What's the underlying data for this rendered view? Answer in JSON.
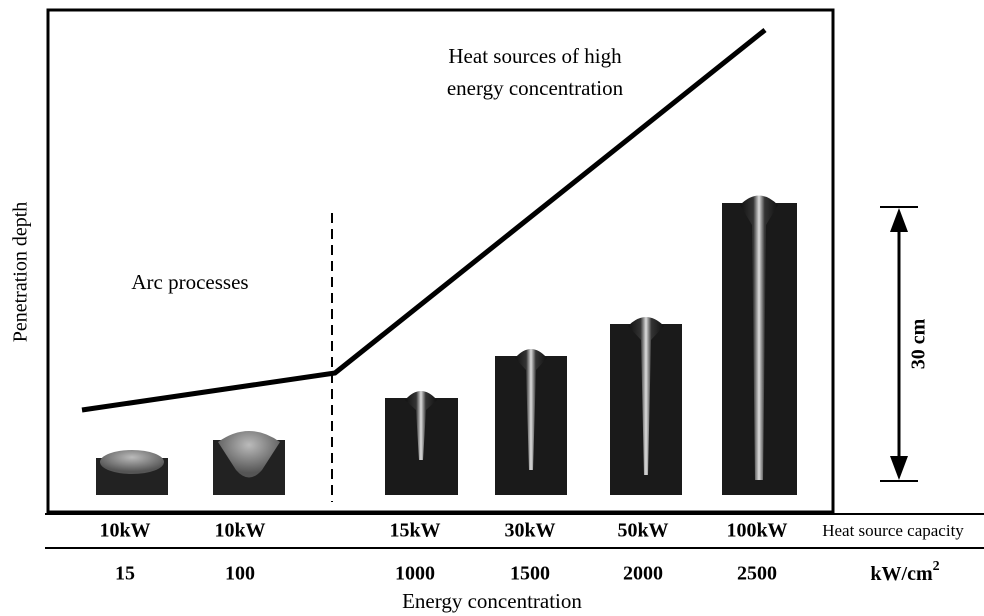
{
  "y_axis_label": "Penetration depth",
  "regions": {
    "arc": "Arc processes",
    "high_energy": [
      "Heat sources of high",
      "energy concentration"
    ]
  },
  "scale_label": "30 cm",
  "rows": {
    "capacity": {
      "label": "Heat source capacity",
      "values": [
        "10kW",
        "10kW",
        "15kW",
        "30kW",
        "50kW",
        "100kW"
      ]
    },
    "concentration": {
      "unit": {
        "base": "kW/cm",
        "superscript": "2"
      },
      "values": [
        "15",
        "100",
        "1000",
        "1500",
        "2000",
        "2500"
      ]
    }
  },
  "x_axis_label": "Energy concentration"
}
